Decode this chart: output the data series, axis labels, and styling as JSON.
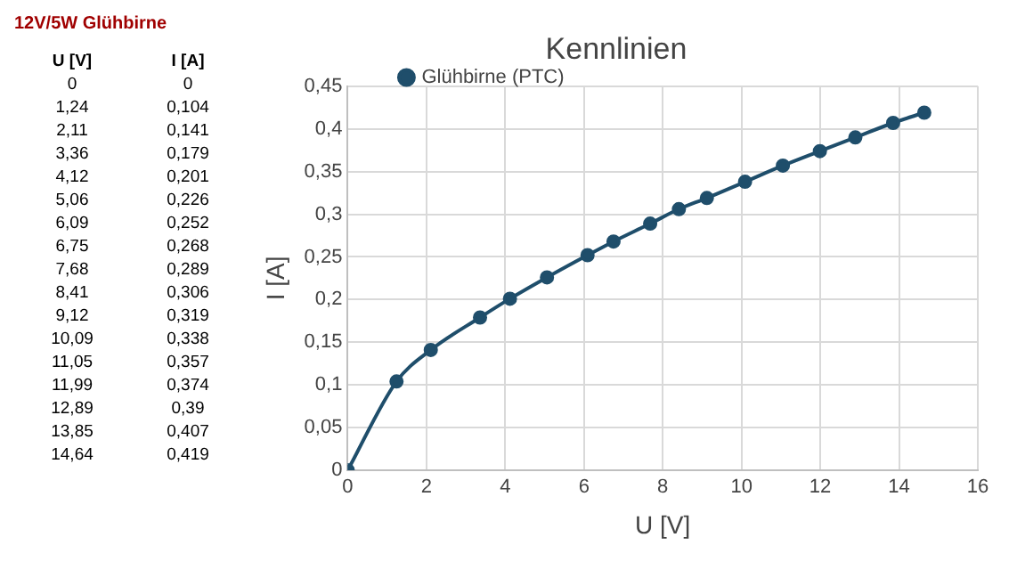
{
  "chart_data": [
    {
      "type": "other",
      "title": "12V/5W Glühbirne",
      "annotations": [
        "U [V]",
        "I [A]",
        "0",
        "0",
        "1,24",
        "0,104",
        "2,11",
        "0,141",
        "3,36",
        "0,179",
        "4,12",
        "0,201",
        "5,06",
        "0,226",
        "6,09",
        "0,252",
        "6,75",
        "0,268",
        "7,68",
        "0,289",
        "8,41",
        "0,306",
        "9,12",
        "0,319",
        "10,09",
        "0,338",
        "11,05",
        "0,357",
        "11,99",
        "0,374",
        "12,89",
        "0,39",
        "13,85",
        "0,407",
        "14,64",
        "0,419"
      ]
    },
    {
      "type": "line",
      "title": "Kennlinien",
      "xlabel": "U [V]",
      "ylabel": "I [A]",
      "x": [
        0,
        1.24,
        2.11,
        3.36,
        4.12,
        5.06,
        6.09,
        6.75,
        7.68,
        8.41,
        9.12,
        10.09,
        11.05,
        11.99,
        12.89,
        13.85,
        14.64
      ],
      "series": [
        {
          "name": "Glühbirne (PTC)",
          "color": "#1f4e6b",
          "values": [
            0,
            0.104,
            0.141,
            0.179,
            0.201,
            0.226,
            0.252,
            0.268,
            0.289,
            0.306,
            0.319,
            0.338,
            0.357,
            0.374,
            0.39,
            0.407,
            0.419
          ]
        }
      ],
      "xlim": [
        0,
        16
      ],
      "xticks": [
        0,
        2,
        4,
        6,
        8,
        10,
        12,
        14,
        16
      ],
      "ylim": [
        0,
        0.45
      ],
      "yticks": [
        0,
        {
          "value": 0.05,
          "label": "0,05"
        },
        {
          "value": 0.1,
          "label": "0,1"
        },
        {
          "value": 0.15,
          "label": "0,15"
        },
        {
          "value": 0.2,
          "label": "0,2"
        },
        {
          "value": 0.25,
          "label": "0,25"
        },
        {
          "value": 0.3,
          "label": "0,3"
        },
        {
          "value": 0.35,
          "label": "0,35"
        },
        {
          "value": 0.4,
          "label": "0,4"
        },
        {
          "value": 0.45,
          "label": "0,45"
        }
      ],
      "grid": true,
      "legend": "top left",
      "marker": "circle",
      "line_style": "solid"
    }
  ]
}
